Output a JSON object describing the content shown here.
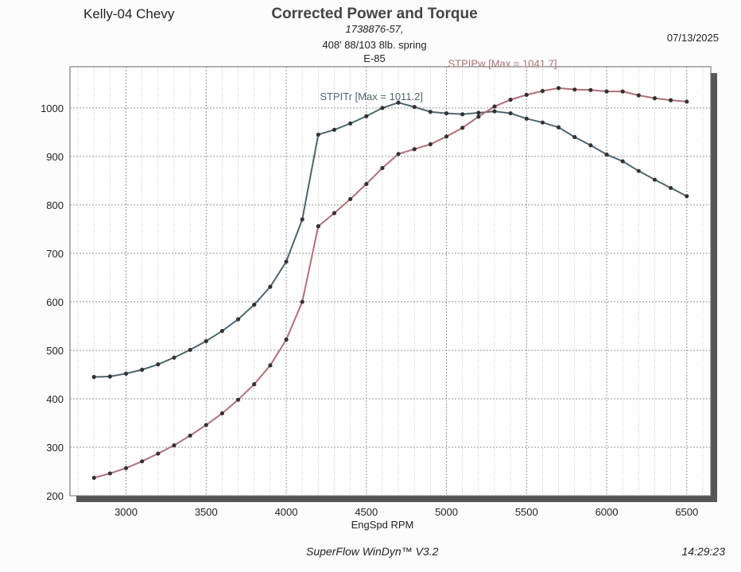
{
  "header": {
    "left_title": "Kelly-04 Chevy",
    "main_title": "Corrected Power and Torque",
    "subtitle_1": "1738876-57,",
    "subtitle_2": "408'  88/103 8lb. spring",
    "subtitle_3": "E-85",
    "date": "07/13/2025"
  },
  "footer": {
    "software": "SuperFlow WinDyn™ V3.2",
    "time": "14:29:23"
  },
  "colors": {
    "torque": "#4d6670",
    "power": "#b07078",
    "marker": "#333333",
    "grid": "#888888"
  },
  "chart_data": {
    "type": "line",
    "title": "Corrected Power and Torque",
    "xlabel": "EngSpd RPM",
    "ylabel": "",
    "xlim": [
      2650,
      6650
    ],
    "ylim": [
      200,
      1085
    ],
    "x_ticks": [
      3000,
      3500,
      4000,
      4500,
      5000,
      5500,
      6000,
      6500
    ],
    "y_ticks": [
      200,
      300,
      400,
      500,
      600,
      700,
      800,
      900,
      1000
    ],
    "grid": true,
    "x": [
      2800,
      2900,
      3000,
      3100,
      3200,
      3300,
      3400,
      3500,
      3600,
      3700,
      3800,
      3900,
      4000,
      4100,
      4200,
      4300,
      4400,
      4500,
      4600,
      4700,
      4800,
      4900,
      5000,
      5100,
      5200,
      5300,
      5400,
      5500,
      5600,
      5700,
      5800,
      5900,
      6000,
      6100,
      6200,
      6300,
      6400,
      6500
    ],
    "series": [
      {
        "name": "STPITr",
        "annotation": "STPITr [Max = 1011.2]",
        "values": [
          445,
          446,
          452,
          460,
          471,
          485,
          501,
          519,
          540,
          564,
          594,
          631,
          683,
          770,
          945,
          955,
          968,
          983,
          1000,
          1011,
          1002,
          992,
          989,
          987,
          990,
          993,
          989,
          978,
          970,
          960,
          940,
          923,
          904,
          890,
          870,
          852,
          835,
          818
        ]
      },
      {
        "name": "STPIPw",
        "annotation": "STPIPw [Max = 1041.7]",
        "values": [
          237,
          246,
          257,
          271,
          287,
          304,
          324,
          346,
          370,
          398,
          430,
          469,
          522,
          600,
          756,
          783,
          812,
          843,
          876,
          905,
          915,
          925,
          941,
          959,
          982,
          1003,
          1017,
          1027,
          1035,
          1041,
          1038,
          1037,
          1034,
          1034,
          1026,
          1020,
          1016,
          1013
        ]
      }
    ]
  }
}
